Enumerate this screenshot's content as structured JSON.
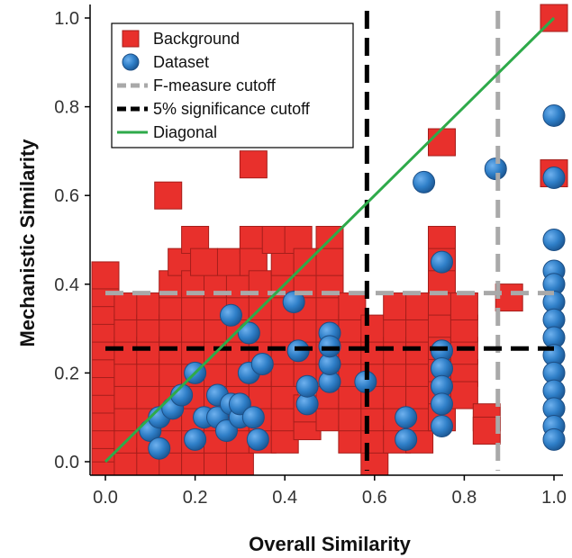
{
  "chart_data": {
    "type": "scatter",
    "title": "",
    "xlabel": "Overall Similarity",
    "ylabel": "Mechanistic Similarity",
    "xlim": [
      0,
      1
    ],
    "ylim": [
      0,
      1
    ],
    "grid": false,
    "legend_position": "top-left",
    "x_ticks": [
      "0.0",
      "0.2",
      "0.4",
      "0.6",
      "0.8",
      "1.0"
    ],
    "y_ticks": [
      "0.0",
      "0.2",
      "0.4",
      "0.6",
      "0.8",
      "1.0"
    ],
    "x_tick_values": [
      0,
      0.2,
      0.4,
      0.6,
      0.8,
      1.0
    ],
    "y_tick_values": [
      0,
      0.2,
      0.4,
      0.6,
      0.8,
      1.0
    ],
    "legend": [
      {
        "label": "Background",
        "kind": "square",
        "color": "#e8302c"
      },
      {
        "label": "Dataset",
        "kind": "circle",
        "color": "#2f7fc8"
      },
      {
        "label": "F-measure cutoff",
        "kind": "dash",
        "color": "#a9a9a9"
      },
      {
        "label": "5% significance cutoff",
        "kind": "dash",
        "color": "#000000"
      },
      {
        "label": "Diagonal",
        "kind": "solid",
        "color": "#2eaa4a"
      }
    ],
    "cutoffs": {
      "f_measure_x": 0.875,
      "f_measure_y": 0.38,
      "significance_x": 0.583,
      "significance_y": 0.255
    },
    "series": [
      {
        "name": "Background",
        "marker": "square",
        "color": "#e8302c",
        "points": [
          [
            0,
            0
          ],
          [
            0,
            0.03
          ],
          [
            0,
            0.06
          ],
          [
            0,
            0.1
          ],
          [
            0,
            0.14
          ],
          [
            0,
            0.18
          ],
          [
            0,
            0.22
          ],
          [
            0,
            0.26
          ],
          [
            0,
            0.3
          ],
          [
            0,
            0.34
          ],
          [
            0,
            0.38
          ],
          [
            0,
            0.42
          ],
          [
            0.05,
            0
          ],
          [
            0.05,
            0.05
          ],
          [
            0.05,
            0.1
          ],
          [
            0.05,
            0.15
          ],
          [
            0.05,
            0.2
          ],
          [
            0.05,
            0.25
          ],
          [
            0.05,
            0.3
          ],
          [
            0.05,
            0.35
          ],
          [
            0.1,
            0
          ],
          [
            0.1,
            0.05
          ],
          [
            0.1,
            0.1
          ],
          [
            0.1,
            0.15
          ],
          [
            0.1,
            0.2
          ],
          [
            0.1,
            0.25
          ],
          [
            0.1,
            0.3
          ],
          [
            0.1,
            0.35
          ],
          [
            0.14,
            0.6
          ],
          [
            0.15,
            0
          ],
          [
            0.15,
            0.05
          ],
          [
            0.15,
            0.1
          ],
          [
            0.15,
            0.15
          ],
          [
            0.15,
            0.2
          ],
          [
            0.15,
            0.25
          ],
          [
            0.15,
            0.3
          ],
          [
            0.15,
            0.35
          ],
          [
            0.15,
            0.4
          ],
          [
            0.17,
            0.45
          ],
          [
            0.2,
            0.5
          ],
          [
            0.2,
            0
          ],
          [
            0.2,
            0.05
          ],
          [
            0.2,
            0.1
          ],
          [
            0.2,
            0.15
          ],
          [
            0.2,
            0.2
          ],
          [
            0.2,
            0.25
          ],
          [
            0.2,
            0.3
          ],
          [
            0.2,
            0.35
          ],
          [
            0.2,
            0.4
          ],
          [
            0.25,
            0
          ],
          [
            0.25,
            0.05
          ],
          [
            0.25,
            0.1
          ],
          [
            0.25,
            0.15
          ],
          [
            0.25,
            0.2
          ],
          [
            0.25,
            0.25
          ],
          [
            0.25,
            0.3
          ],
          [
            0.25,
            0.35
          ],
          [
            0.25,
            0.4
          ],
          [
            0.22,
            0.45
          ],
          [
            0.3,
            0
          ],
          [
            0.3,
            0.05
          ],
          [
            0.3,
            0.1
          ],
          [
            0.3,
            0.15
          ],
          [
            0.3,
            0.2
          ],
          [
            0.3,
            0.25
          ],
          [
            0.3,
            0.3
          ],
          [
            0.3,
            0.35
          ],
          [
            0.3,
            0.4
          ],
          [
            0.28,
            0.45
          ],
          [
            0.33,
            0.67
          ],
          [
            0.33,
            0.5
          ],
          [
            0.33,
            0.45
          ],
          [
            0.35,
            0.05
          ],
          [
            0.35,
            0.1
          ],
          [
            0.35,
            0.15
          ],
          [
            0.35,
            0.2
          ],
          [
            0.35,
            0.25
          ],
          [
            0.35,
            0.3
          ],
          [
            0.35,
            0.35
          ],
          [
            0.35,
            0.4
          ],
          [
            0.4,
            0.05
          ],
          [
            0.4,
            0.1
          ],
          [
            0.4,
            0.15
          ],
          [
            0.4,
            0.2
          ],
          [
            0.4,
            0.25
          ],
          [
            0.4,
            0.3
          ],
          [
            0.4,
            0.35
          ],
          [
            0.4,
            0.4
          ],
          [
            0.4,
            0.45
          ],
          [
            0.38,
            0.5
          ],
          [
            0.43,
            0.5
          ],
          [
            0.45,
            0.08
          ],
          [
            0.45,
            0.12
          ],
          [
            0.45,
            0.2
          ],
          [
            0.45,
            0.25
          ],
          [
            0.45,
            0.3
          ],
          [
            0.45,
            0.35
          ],
          [
            0.45,
            0.4
          ],
          [
            0.45,
            0.45
          ],
          [
            0.5,
            0.5
          ],
          [
            0.5,
            0.1
          ],
          [
            0.5,
            0.15
          ],
          [
            0.5,
            0.2
          ],
          [
            0.5,
            0.25
          ],
          [
            0.5,
            0.3
          ],
          [
            0.5,
            0.35
          ],
          [
            0.5,
            0.4
          ],
          [
            0.5,
            0.45
          ],
          [
            0.55,
            0.05
          ],
          [
            0.55,
            0.1
          ],
          [
            0.55,
            0.15
          ],
          [
            0.55,
            0.2
          ],
          [
            0.55,
            0.25
          ],
          [
            0.55,
            0.3
          ],
          [
            0.55,
            0.35
          ],
          [
            0.6,
            0
          ],
          [
            0.6,
            0.05
          ],
          [
            0.6,
            0.1
          ],
          [
            0.6,
            0.15
          ],
          [
            0.6,
            0.2
          ],
          [
            0.6,
            0.25
          ],
          [
            0.6,
            0.3
          ],
          [
            0.65,
            0.05
          ],
          [
            0.65,
            0.1
          ],
          [
            0.65,
            0.15
          ],
          [
            0.65,
            0.2
          ],
          [
            0.65,
            0.25
          ],
          [
            0.65,
            0.3
          ],
          [
            0.65,
            0.35
          ],
          [
            0.7,
            0.05
          ],
          [
            0.7,
            0.1
          ],
          [
            0.7,
            0.15
          ],
          [
            0.7,
            0.2
          ],
          [
            0.7,
            0.25
          ],
          [
            0.7,
            0.3
          ],
          [
            0.7,
            0.35
          ],
          [
            0.75,
            0.72
          ],
          [
            0.75,
            0.5
          ],
          [
            0.75,
            0.45
          ],
          [
            0.75,
            0.4
          ],
          [
            0.75,
            0.35
          ],
          [
            0.75,
            0.3
          ],
          [
            0.75,
            0.25
          ],
          [
            0.75,
            0.2
          ],
          [
            0.75,
            0.15
          ],
          [
            0.75,
            0.1
          ],
          [
            0.8,
            0.2
          ],
          [
            0.8,
            0.25
          ],
          [
            0.8,
            0.3
          ],
          [
            0.8,
            0.35
          ],
          [
            0.8,
            0.15
          ],
          [
            0.85,
            0.1
          ],
          [
            0.85,
            0.07
          ],
          [
            0.9,
            0.37
          ],
          [
            1,
            1
          ],
          [
            1,
            0.65
          ]
        ]
      },
      {
        "name": "Dataset",
        "marker": "circle",
        "color": "#2f7fc8",
        "points": [
          [
            0.1,
            0.07
          ],
          [
            0.12,
            0.1
          ],
          [
            0.12,
            0.03
          ],
          [
            0.15,
            0.12
          ],
          [
            0.17,
            0.15
          ],
          [
            0.2,
            0.05
          ],
          [
            0.2,
            0.2
          ],
          [
            0.22,
            0.1
          ],
          [
            0.25,
            0.1
          ],
          [
            0.25,
            0.15
          ],
          [
            0.27,
            0.07
          ],
          [
            0.28,
            0.13
          ],
          [
            0.3,
            0.1
          ],
          [
            0.3,
            0.13
          ],
          [
            0.32,
            0.2
          ],
          [
            0.33,
            0.1
          ],
          [
            0.34,
            0.05
          ],
          [
            0.35,
            0.22
          ],
          [
            0.28,
            0.33
          ],
          [
            0.32,
            0.29
          ],
          [
            0.42,
            0.36
          ],
          [
            0.43,
            0.25
          ],
          [
            0.45,
            0.13
          ],
          [
            0.45,
            0.17
          ],
          [
            0.5,
            0.18
          ],
          [
            0.5,
            0.22
          ],
          [
            0.5,
            0.29
          ],
          [
            0.5,
            0.26
          ],
          [
            0.58,
            0.18
          ],
          [
            0.67,
            0.05
          ],
          [
            0.67,
            0.1
          ],
          [
            0.71,
            0.63
          ],
          [
            0.75,
            0.45
          ],
          [
            0.75,
            0.25
          ],
          [
            0.75,
            0.21
          ],
          [
            0.75,
            0.17
          ],
          [
            0.75,
            0.13
          ],
          [
            0.75,
            0.08
          ],
          [
            0.87,
            0.66
          ],
          [
            1,
            0.78
          ],
          [
            1,
            0.64
          ],
          [
            1,
            0.5
          ],
          [
            1,
            0.43
          ],
          [
            1,
            0.4
          ],
          [
            1,
            0.36
          ],
          [
            1,
            0.32
          ],
          [
            1,
            0.28
          ],
          [
            1,
            0.24
          ],
          [
            1,
            0.2
          ],
          [
            1,
            0.16
          ],
          [
            1,
            0.12
          ],
          [
            1,
            0.08
          ],
          [
            1,
            0.05
          ]
        ]
      },
      {
        "name": "Diagonal",
        "marker": "line",
        "color": "#2eaa4a",
        "points": [
          [
            0,
            0
          ],
          [
            1,
            1
          ]
        ]
      }
    ]
  }
}
